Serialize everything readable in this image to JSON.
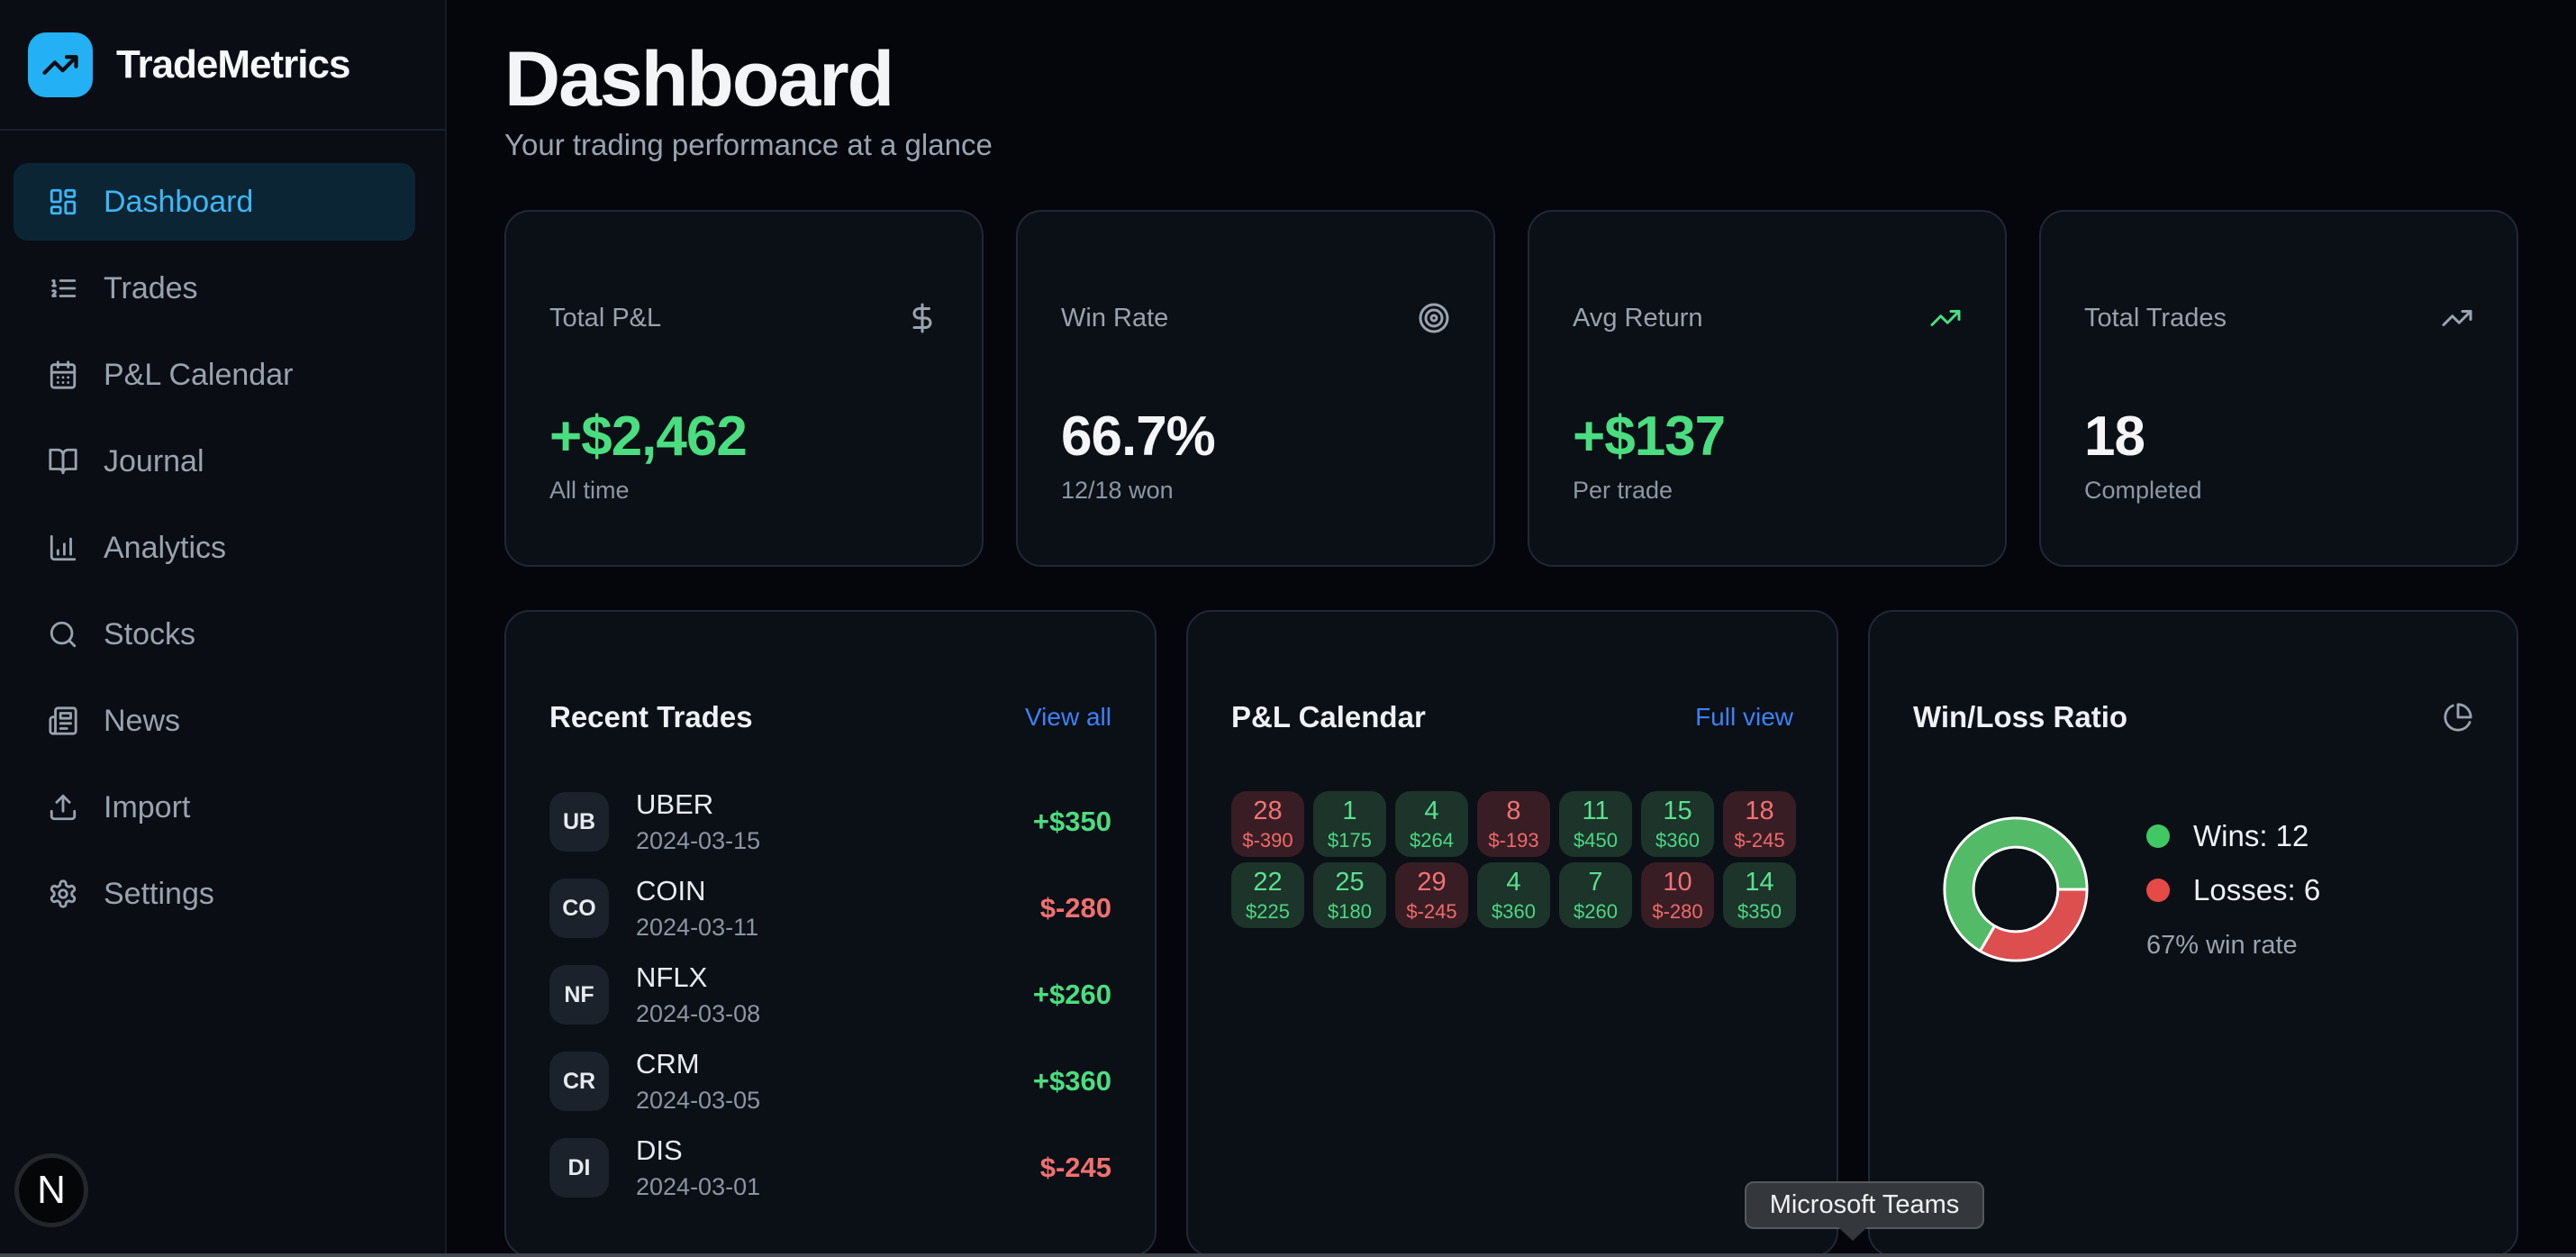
{
  "app": {
    "name": "TradeMetrics"
  },
  "colors": {
    "accent_blue": "#3db7f7",
    "link_blue": "#3b82f6",
    "positive_green": "#4ade80",
    "negative_red": "#f37070",
    "donut_green": "#53ba67",
    "donut_red": "#dd4f4f",
    "logo_blue": "#24b0f4"
  },
  "sidebar": {
    "items": [
      {
        "label": "Dashboard",
        "icon": "layout-dashboard-icon",
        "active": true
      },
      {
        "label": "Trades",
        "icon": "list-ordered-icon",
        "active": false
      },
      {
        "label": "P&L Calendar",
        "icon": "calendar-icon",
        "active": false
      },
      {
        "label": "Journal",
        "icon": "book-open-icon",
        "active": false
      },
      {
        "label": "Analytics",
        "icon": "bar-chart-icon",
        "active": false
      },
      {
        "label": "Stocks",
        "icon": "search-icon",
        "active": false
      },
      {
        "label": "News",
        "icon": "newspaper-icon",
        "active": false
      },
      {
        "label": "Import",
        "icon": "upload-icon",
        "active": false
      },
      {
        "label": "Settings",
        "icon": "gear-icon",
        "active": false
      }
    ]
  },
  "dev_badge": {
    "letter": "N"
  },
  "header": {
    "title": "Dashboard",
    "subtitle": "Your trading performance at a glance"
  },
  "stats": [
    {
      "label": "Total P&L",
      "icon": "dollar-icon",
      "icon_tone": "neutral",
      "value": "+$2,462",
      "tone": "positive",
      "sub": "All time"
    },
    {
      "label": "Win Rate",
      "icon": "target-icon",
      "icon_tone": "neutral",
      "value": "66.7%",
      "tone": "neutral",
      "sub": "12/18 won"
    },
    {
      "label": "Avg Return",
      "icon": "trending-up-icon",
      "icon_tone": "positive",
      "value": "+$137",
      "tone": "positive",
      "sub": "Per trade"
    },
    {
      "label": "Total Trades",
      "icon": "trending-up-icon",
      "icon_tone": "neutral",
      "value": "18",
      "tone": "neutral",
      "sub": "Completed"
    }
  ],
  "recent_trades": {
    "title": "Recent Trades",
    "link": "View all",
    "rows": [
      {
        "avatar": "UB",
        "symbol": "UBER",
        "date": "2024-03-15",
        "pnl": "+$350",
        "tone": "positive"
      },
      {
        "avatar": "CO",
        "symbol": "COIN",
        "date": "2024-03-11",
        "pnl": "$-280",
        "tone": "negative"
      },
      {
        "avatar": "NF",
        "symbol": "NFLX",
        "date": "2024-03-08",
        "pnl": "+$260",
        "tone": "positive"
      },
      {
        "avatar": "CR",
        "symbol": "CRM",
        "date": "2024-03-05",
        "pnl": "+$360",
        "tone": "positive"
      },
      {
        "avatar": "DI",
        "symbol": "DIS",
        "date": "2024-03-01",
        "pnl": "$-245",
        "tone": "negative"
      }
    ]
  },
  "pnl_calendar": {
    "title": "P&L Calendar",
    "link": "Full view",
    "cells": [
      {
        "day": "28",
        "value": "$-390",
        "tone": "negative"
      },
      {
        "day": "1",
        "value": "$175",
        "tone": "positive"
      },
      {
        "day": "4",
        "value": "$264",
        "tone": "positive"
      },
      {
        "day": "8",
        "value": "$-193",
        "tone": "negative"
      },
      {
        "day": "11",
        "value": "$450",
        "tone": "positive"
      },
      {
        "day": "15",
        "value": "$360",
        "tone": "positive"
      },
      {
        "day": "18",
        "value": "$-245",
        "tone": "negative"
      },
      {
        "day": "22",
        "value": "$225",
        "tone": "positive"
      },
      {
        "day": "25",
        "value": "$180",
        "tone": "positive"
      },
      {
        "day": "29",
        "value": "$-245",
        "tone": "negative"
      },
      {
        "day": "4",
        "value": "$360",
        "tone": "positive"
      },
      {
        "day": "7",
        "value": "$260",
        "tone": "positive"
      },
      {
        "day": "10",
        "value": "$-280",
        "tone": "negative"
      },
      {
        "day": "14",
        "value": "$350",
        "tone": "positive"
      }
    ]
  },
  "win_loss": {
    "title": "Win/Loss Ratio",
    "wins": 12,
    "losses": 6,
    "wins_label": "Wins: 12",
    "losses_label": "Losses: 6",
    "rate_label": "67% win rate"
  },
  "chart_data": {
    "type": "pie",
    "title": "Win/Loss Ratio",
    "labels": [
      "Wins",
      "Losses"
    ],
    "values": [
      12,
      6
    ],
    "colors": [
      "#53ba67",
      "#dd4f4f"
    ],
    "donut": true,
    "annotations": [
      "Wins: 12",
      "Losses: 6",
      "67% win rate"
    ],
    "legend_position": "right"
  },
  "tooltip": {
    "text": "Microsoft Teams"
  }
}
